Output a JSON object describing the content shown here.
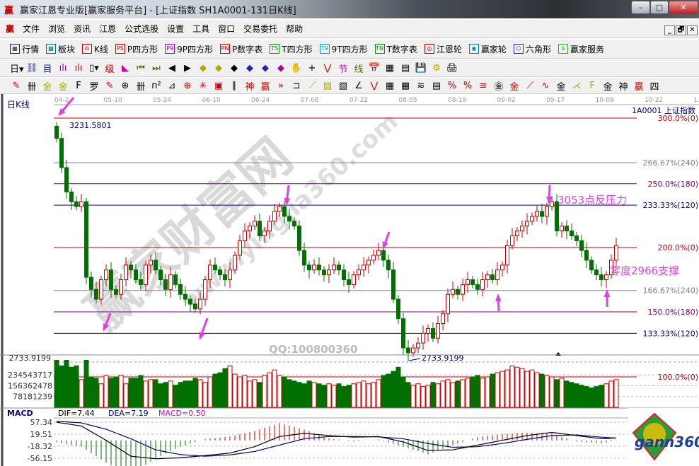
{
  "window": {
    "title": "赢家江恩专业版[赢家服务平台] - [上证指数  SH1A0001-131日K线]",
    "logo": "赢",
    "min": "–",
    "max": "□",
    "close": "✕"
  },
  "menu": [
    "文件",
    "浏览",
    "资讯",
    "江恩",
    "公式选股",
    "设置",
    "工具",
    "窗口",
    "交易委托",
    "帮助"
  ],
  "mdi_buttons": [
    "_",
    "🗗",
    "✕"
  ],
  "toolbar1": [
    {
      "icon": "grid-icon",
      "glyph": "▦",
      "label": "行情"
    },
    {
      "icon": "blocks-icon",
      "glyph": "▩",
      "label": "板块"
    },
    {
      "icon": "kline-icon",
      "glyph": "ılı",
      "label": "K线"
    },
    {
      "icon": "ps-icon",
      "glyph": "PS",
      "label": "P四方形"
    },
    {
      "icon": "p9-icon",
      "glyph": "P9",
      "label": "9P四方形"
    },
    {
      "icon": "pn-icon",
      "glyph": "PN",
      "label": "P数字表"
    },
    {
      "icon": "ts-icon",
      "glyph": "TS",
      "label": "T四方形"
    },
    {
      "icon": "t9-icon",
      "glyph": "T9",
      "label": "9T四方形"
    },
    {
      "icon": "tn-icon",
      "glyph": "TN",
      "label": "T数字表"
    },
    {
      "icon": "gann-wheel-icon",
      "glyph": "◎",
      "label": "江恩轮"
    },
    {
      "icon": "big-wheel-icon",
      "glyph": "◉",
      "label": "赢家轮"
    },
    {
      "icon": "hexagon-icon",
      "glyph": "⬡",
      "label": "六角形"
    },
    {
      "icon": "dollar-icon",
      "glyph": "$",
      "label": "赢家服务"
    }
  ],
  "toolbar2": [
    "日▾",
    "⛓",
    "目",
    "ılı",
    "ılı",
    "▯▾",
    "级",
    "◣",
    "⏮",
    "⏭",
    "◀",
    "▶",
    "◆",
    "◆",
    "◆",
    "◆",
    "◆",
    "◆",
    "✋",
    "+",
    "⋁",
    "节",
    "线",
    "📅",
    "▦",
    "▤",
    "💾",
    "⚙",
    "🖨"
  ],
  "toolbar3": [
    "✎",
    "卌",
    "金",
    "金",
    "F",
    "罗",
    "✎",
    "⊕",
    "卌",
    "n²",
    "⊿",
    "⊕",
    "✳",
    "▣",
    "∥",
    "神",
    "赢",
    "»",
    "⊐",
    "⟋",
    "▧",
    "▧",
    "∠",
    "⋁",
    "▦",
    "▦",
    "≋",
    "▤",
    "%",
    "%",
    "≡",
    "㊎",
    "金",
    "⟋",
    "∿",
    "金",
    "⋌",
    "F",
    "金",
    "神",
    "赢",
    "四"
  ],
  "chart_data": {
    "type": "candlestick",
    "panel_title": "日K线",
    "symbol_label": "1A0001  上证指数",
    "date_ticks": [
      "04-2",
      "05-10",
      "05-24",
      "06-10",
      "06-24",
      "07-08",
      "07-22",
      "08-05",
      "08-19",
      "09-02",
      "09-17",
      "10-08",
      "10-22",
      "11-0"
    ],
    "high_label": "3231.5801",
    "low_label": "2733.9199",
    "high": 3231.5801,
    "low": 2733.9199,
    "close": [
      3190,
      3130,
      3080,
      3060,
      3050,
      3060,
      2905,
      2880,
      2860,
      2900,
      2920,
      2880,
      2870,
      2900,
      2930,
      2920,
      2900,
      2890,
      2930,
      2940,
      2920,
      2900,
      2880,
      2910,
      2890,
      2870,
      2860,
      2850,
      2840,
      2860,
      2900,
      2930,
      2920,
      2910,
      2900,
      2920,
      2950,
      2980,
      3000,
      3010,
      3020,
      2990,
      3000,
      3020,
      3040,
      3050,
      3030,
      3020,
      3010,
      2960,
      2930,
      2920,
      2930,
      2920,
      2910,
      2920,
      2930,
      2920,
      2900,
      2890,
      2910,
      2920,
      2930,
      2940,
      2950,
      2960,
      2940,
      2920,
      2860,
      2820,
      2760,
      2750,
      2760,
      2770,
      2790,
      2800,
      2780,
      2810,
      2830,
      2870,
      2880,
      2870,
      2890,
      2900,
      2890,
      2880,
      2900,
      2910,
      2900,
      2920,
      2930,
      2970,
      2990,
      3000,
      3010,
      3020,
      3030,
      3040,
      3030,
      3050,
      3060,
      3000,
      3010,
      3000,
      2990,
      2980,
      2960,
      2940,
      2920,
      2910,
      2900,
      2910,
      2940,
      2970
    ],
    "gann_levels": [
      {
        "label": "300.0%(0)",
        "price": 3231.58,
        "color": "#c00000"
      },
      {
        "label": "266.67%(240)",
        "price": 3140,
        "color": "#808080"
      },
      {
        "label": "250.0%(180)",
        "price": 3097,
        "color": "#800080"
      },
      {
        "label": "233.33%(120)",
        "price": 3053,
        "color": "#000080"
      },
      {
        "label": "200.0%(0)",
        "price": 2966,
        "color": "#c00000"
      },
      {
        "label": "166.67%(240)",
        "price": 2878,
        "color": "#808080"
      },
      {
        "label": "150.0%(180)",
        "price": 2834,
        "color": "#800080"
      },
      {
        "label": "133.33%(120)",
        "price": 2790,
        "color": "#000080"
      }
    ],
    "annotations": [
      "3053点反压力",
      "零度2966支撑"
    ],
    "annotation_color": "#e040e0",
    "up_color": "#cc0000",
    "down_color": "#007000",
    "volume": {
      "ticks": [
        "234543717",
        "156362478",
        "78181239"
      ],
      "tick_values": [
        234543717,
        156362478,
        78181239
      ],
      "top_label": "2733.9199",
      "level_label": "100.0%(0)",
      "values": [
        340000000.0,
        300000000.0,
        340000000.0,
        290000000.0,
        300000000.0,
        200000000.0,
        340000000.0,
        220000000.0,
        210000000.0,
        170000000.0,
        230000000.0,
        210000000.0,
        220000000.0,
        230000000.0,
        170000000.0,
        210000000.0,
        210000000.0,
        230000000.0,
        190000000.0,
        200000000.0,
        200000000.0,
        170000000.0,
        180000000.0,
        190000000.0,
        160000000.0,
        180000000.0,
        190000000.0,
        190000000.0,
        210000000.0,
        200000000.0,
        180000000.0,
        220000000.0,
        240000000.0,
        250000000.0,
        280000000.0,
        300000000.0,
        240000000.0,
        220000000.0,
        230000000.0,
        190000000.0,
        200000000.0,
        180000000.0,
        230000000.0,
        250000000.0,
        270000000.0,
        230000000.0,
        220000000.0,
        200000000.0,
        190000000.0,
        180000000.0,
        170000000.0,
        190000000.0,
        180000000.0,
        170000000.0,
        160000000.0,
        170000000.0,
        160000000.0,
        170000000.0,
        150000000.0,
        160000000.0,
        170000000.0,
        180000000.0,
        190000000.0,
        170000000.0,
        180000000.0,
        200000000.0,
        230000000.0,
        240000000.0,
        260000000.0,
        290000000.0,
        220000000.0,
        180000000.0,
        160000000.0,
        170000000.0,
        150000000.0,
        160000000.0,
        180000000.0,
        170000000.0,
        190000000.0,
        200000000.0,
        180000000.0,
        190000000.0,
        200000000.0,
        210000000.0,
        220000000.0,
        230000000.0,
        210000000.0,
        220000000.0,
        240000000.0,
        250000000.0,
        260000000.0,
        270000000.0,
        300000000.0,
        290000000.0,
        280000000.0,
        260000000.0,
        270000000.0,
        250000000.0,
        240000000.0,
        230000000.0,
        220000000.0,
        200000000.0,
        210000000.0,
        190000000.0,
        180000000.0,
        170000000.0,
        160000000.0,
        150000000.0,
        140000000.0,
        150000000.0,
        160000000.0,
        170000000.0,
        190000000.0,
        200000000.0
      ]
    },
    "macd": {
      "title": "MACD",
      "dif_label": "DIF=7.44",
      "dea_label": "DEA=7.19",
      "macd_label": "MACD=0.50",
      "ticks": [
        "57.34",
        "19.51",
        "-18.32",
        "-56.15"
      ],
      "tick_values": [
        57.34,
        19.51,
        -18.32,
        -56.15
      ],
      "sample_index": [
        0,
        5,
        10,
        15,
        20,
        25,
        30,
        35,
        40,
        45,
        50,
        55,
        60,
        65,
        70,
        75,
        80,
        85,
        90,
        95,
        100,
        105,
        110,
        113
      ],
      "dif": [
        57,
        45,
        0,
        -50,
        -58,
        -55,
        -48,
        -40,
        -20,
        12,
        22,
        15,
        10,
        12,
        -5,
        -32,
        -30,
        -15,
        0,
        15,
        25,
        15,
        5,
        7.44
      ],
      "dea": [
        60,
        55,
        35,
        5,
        -30,
        -45,
        -50,
        -46,
        -35,
        -15,
        5,
        12,
        12,
        11,
        5,
        -10,
        -22,
        -20,
        -10,
        3,
        15,
        17,
        10,
        7.19
      ]
    }
  },
  "watermark": {
    "site": "赢家财富网",
    "url": "www.yingjia360.com",
    "qq": "QQ:100800360",
    "logo": "gann360"
  }
}
